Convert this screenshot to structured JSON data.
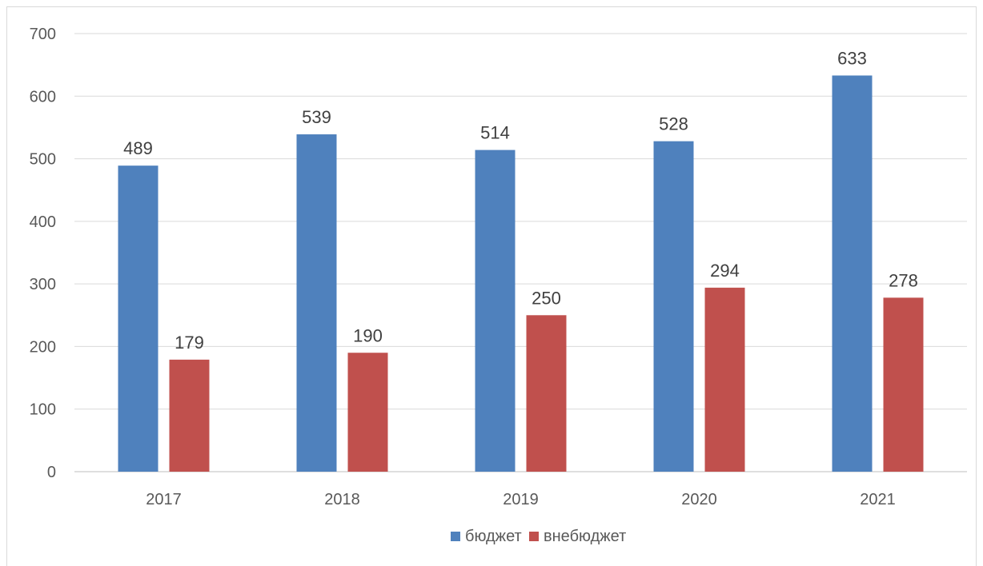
{
  "chart_data": {
    "type": "bar",
    "title": "",
    "xlabel": "",
    "ylabel": "",
    "categories": [
      "2017",
      "2018",
      "2019",
      "2020",
      "2021"
    ],
    "series": [
      {
        "name": "бюджет",
        "values": [
          489,
          539,
          514,
          528,
          633
        ],
        "color": "#4f81bd"
      },
      {
        "name": "внебюджет",
        "values": [
          179,
          190,
          250,
          294,
          278
        ],
        "color": "#c0504d"
      }
    ],
    "ylim": [
      0,
      700
    ],
    "yticks": [
      "0",
      "100",
      "200",
      "300",
      "400",
      "500",
      "600",
      "700"
    ],
    "grid": true,
    "legend_position": "bottom",
    "data_labels": true
  }
}
